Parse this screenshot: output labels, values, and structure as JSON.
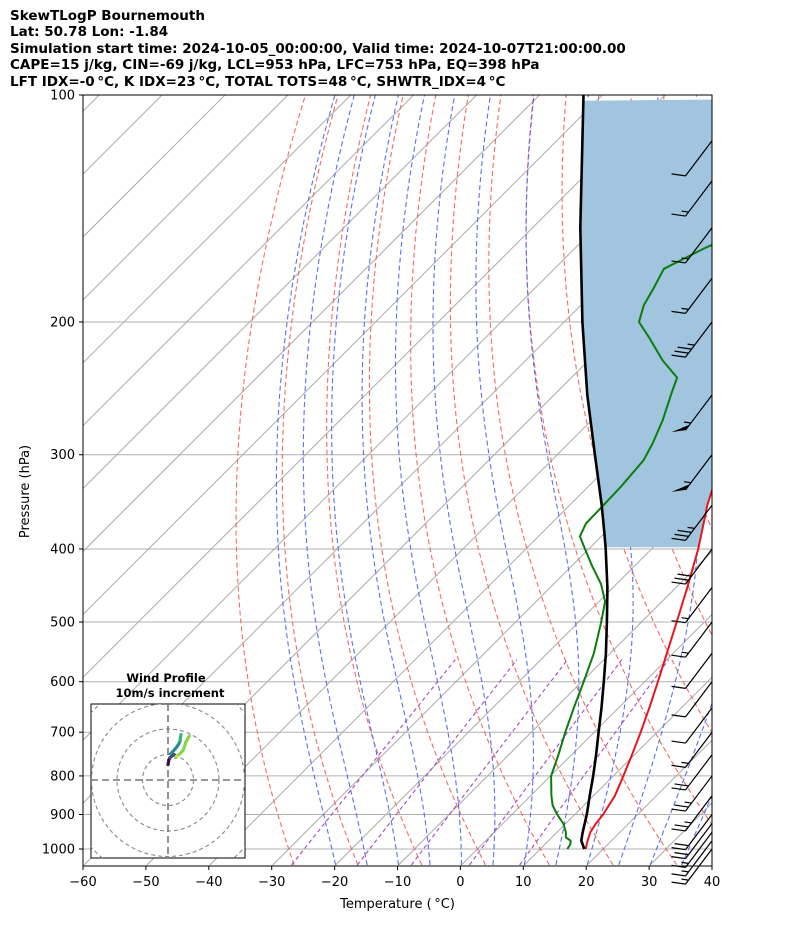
{
  "title_lines": [
    "SkewTLogP Bournemouth",
    "Lat: 50.78   Lon: -1.84",
    "Simulation start time: 2024-10-05_00:00:00, Valid time: 2024-10-07T21:00:00.00",
    "CAPE=15 j/kg, CIN=-69 j/kg, LCL=953 hPa, LFC=753 hPa, EQ=398 hPa",
    "LFT IDX=-0$^\\circ$C, K IDX=23$^\\circ$C, TOTAL TOTS=48$^\\circ$C, SHWTR_IDX=4$^\\circ$C"
  ],
  "title_display": [
    "SkewTLogP Bournemouth",
    "Lat: 50.78   Lon: -1.84",
    "Simulation start time: 2024-10-05_00:00:00, Valid time: 2024-10-07T21:00:00.00",
    "CAPE=15 j/kg, CIN=-69 j/kg, LCL=953 hPa, LFC=753 hPa, EQ=398 hPa",
    "LFT IDX=-0 °C, K IDX=23 °C, TOTAL TOTS=48 °C, SHWTR_IDX=4 °C"
  ],
  "chart_data": {
    "type": "line",
    "skew_t": true,
    "xlabel": "Temperature ( °C)",
    "ylabel": "Pressure (hPa)",
    "xlim": [
      -60,
      40
    ],
    "ylim": [
      1050,
      100
    ],
    "yscale": "log",
    "grid": true,
    "xticks": [
      -60,
      -50,
      -40,
      -30,
      -20,
      -10,
      0,
      10,
      20,
      30,
      40
    ],
    "yticks": [
      1000,
      900,
      800,
      700,
      600,
      500,
      400,
      300,
      200,
      100
    ],
    "series": [
      {
        "name": "Temperature",
        "color": "#e8161b",
        "points": [
          [
            1000,
            17.2
          ],
          [
            975,
            16.2
          ],
          [
            950,
            15.3
          ],
          [
            925,
            14.8
          ],
          [
            900,
            14.5
          ],
          [
            850,
            13.4
          ],
          [
            800,
            11.6
          ],
          [
            750,
            9.6
          ],
          [
            700,
            7.4
          ],
          [
            650,
            4.9
          ],
          [
            600,
            2.1
          ],
          [
            550,
            -1.0
          ],
          [
            500,
            -4.4
          ],
          [
            450,
            -8.2
          ],
          [
            400,
            -12.6
          ],
          [
            370,
            -15.8
          ],
          [
            350,
            -18.1
          ],
          [
            330,
            -20.2
          ],
          [
            300,
            -24.3
          ],
          [
            280,
            -27.6
          ],
          [
            260,
            -30.8
          ],
          [
            245,
            -33.4
          ],
          [
            235,
            -34.9
          ],
          [
            225,
            -31.3
          ],
          [
            210,
            -27.4
          ],
          [
            200,
            -25.5
          ],
          [
            190,
            -24.0
          ],
          [
            180,
            -22.8
          ],
          [
            170,
            -23.6
          ],
          [
            160,
            -24.8
          ],
          [
            150,
            -26.3
          ],
          [
            140,
            -28.9
          ],
          [
            130,
            -31.5
          ],
          [
            120,
            -35.0
          ],
          [
            110,
            -39.2
          ],
          [
            100,
            -43.3
          ]
        ]
      },
      {
        "name": "Dewpoint",
        "color": "#0a7d0a",
        "points": [
          [
            1000,
            14.3
          ],
          [
            985,
            14.0
          ],
          [
            975,
            13.5
          ],
          [
            965,
            12.2
          ],
          [
            950,
            11.4
          ],
          [
            925,
            9.6
          ],
          [
            900,
            7.2
          ],
          [
            875,
            5.0
          ],
          [
            850,
            3.3
          ],
          [
            800,
            0.1
          ],
          [
            750,
            -2.1
          ],
          [
            700,
            -4.6
          ],
          [
            650,
            -7.1
          ],
          [
            600,
            -9.7
          ],
          [
            550,
            -12.6
          ],
          [
            500,
            -16.4
          ],
          [
            470,
            -19.0
          ],
          [
            445,
            -22.5
          ],
          [
            420,
            -27.0
          ],
          [
            400,
            -30.6
          ],
          [
            385,
            -33.4
          ],
          [
            370,
            -34.5
          ],
          [
            350,
            -34.6
          ],
          [
            330,
            -34.8
          ],
          [
            305,
            -35.4
          ],
          [
            290,
            -36.6
          ],
          [
            270,
            -38.7
          ],
          [
            250,
            -41.4
          ],
          [
            237,
            -43.2
          ],
          [
            225,
            -48.2
          ],
          [
            210,
            -53.9
          ],
          [
            200,
            -58.1
          ],
          [
            190,
            -60.0
          ],
          [
            180,
            -61.2
          ],
          [
            170,
            -62.6
          ],
          [
            160,
            -59.5
          ],
          [
            150,
            -55.6
          ],
          [
            140,
            -52.5
          ],
          [
            130,
            -50.0
          ],
          [
            120,
            -47.8
          ],
          [
            110,
            -45.6
          ],
          [
            100,
            -43.6
          ]
        ]
      },
      {
        "name": "Parcel",
        "color": "#000000",
        "points": [
          [
            1000,
            17.0
          ],
          [
            975,
            15.2
          ],
          [
            953,
            14.2
          ],
          [
            925,
            13.0
          ],
          [
            900,
            11.9
          ],
          [
            850,
            9.4
          ],
          [
            800,
            6.8
          ],
          [
            750,
            3.9
          ],
          [
            700,
            0.7
          ],
          [
            650,
            -2.7
          ],
          [
            600,
            -6.5
          ],
          [
            550,
            -10.7
          ],
          [
            500,
            -15.5
          ],
          [
            450,
            -20.9
          ],
          [
            400,
            -27.3
          ],
          [
            380,
            -30.2
          ],
          [
            350,
            -34.9
          ],
          [
            300,
            -44.0
          ],
          [
            250,
            -54.7
          ],
          [
            200,
            -67.1
          ],
          [
            150,
            -82.4
          ],
          [
            100,
            -103.0
          ]
        ]
      }
    ],
    "shaded_region": {
      "label": "CAPE",
      "color": "#a1c5de",
      "between": [
        "Temperature",
        "Parcel"
      ],
      "pressure_range": [
        100,
        398
      ]
    },
    "reference_lines": {
      "dry_adiabats": {
        "color": "#f06b6b",
        "style": "dashed"
      },
      "moist_adiabats": {
        "color": "#5d6ef0",
        "style": "dashed"
      },
      "mixing_ratio": {
        "color": "#a349c7",
        "style": "dashed"
      },
      "isotherms": {
        "color": "#aaaaaa",
        "style": "solid"
      }
    },
    "wind_barbs": [
      {
        "pressure": 1000,
        "speed_kt": 15
      },
      {
        "pressure": 975,
        "speed_kt": 15
      },
      {
        "pressure": 950,
        "speed_kt": 15
      },
      {
        "pressure": 925,
        "speed_kt": 20
      },
      {
        "pressure": 900,
        "speed_kt": 20
      },
      {
        "pressure": 850,
        "speed_kt": 25
      },
      {
        "pressure": 800,
        "speed_kt": 25
      },
      {
        "pressure": 750,
        "speed_kt": 20
      },
      {
        "pressure": 700,
        "speed_kt": 15
      },
      {
        "pressure": 650,
        "speed_kt": 10
      },
      {
        "pressure": 600,
        "speed_kt": 10
      },
      {
        "pressure": 550,
        "speed_kt": 10
      },
      {
        "pressure": 500,
        "speed_kt": 15
      },
      {
        "pressure": 450,
        "speed_kt": 15
      },
      {
        "pressure": 400,
        "speed_kt": 30
      },
      {
        "pressure": 350,
        "speed_kt": 35
      },
      {
        "pressure": 300,
        "speed_kt": 55
      },
      {
        "pressure": 250,
        "speed_kt": 55
      },
      {
        "pressure": 200,
        "speed_kt": 35
      },
      {
        "pressure": 175,
        "speed_kt": 15
      },
      {
        "pressure": 150,
        "speed_kt": 15
      },
      {
        "pressure": 130,
        "speed_kt": 15
      },
      {
        "pressure": 115,
        "speed_kt": 10
      }
    ],
    "hodograph": {
      "title": "Wind Profile",
      "subtitle": "10m/s increment",
      "ring_interval_ms": 10,
      "segments": [
        {
          "color": "#3b0f52",
          "points": [
            [
              0,
              6
            ],
            [
              0.3,
              7.8
            ],
            [
              0.8,
              8.8
            ]
          ]
        },
        {
          "color": "#3e4a89",
          "points": [
            [
              0.8,
              8.8
            ],
            [
              1.6,
              9.4
            ],
            [
              2.3,
              10.0
            ],
            [
              2.8,
              9.7
            ],
            [
              3.0,
              8.9
            ]
          ]
        },
        {
          "color": "#2a8a8c",
          "points": [
            [
              1.0,
              10.3
            ],
            [
              2.2,
              11.5
            ],
            [
              3.5,
              13.0
            ],
            [
              4.3,
              14.3
            ],
            [
              4.8,
              15.4
            ]
          ]
        },
        {
          "color": "#35b779",
          "points": [
            [
              4.7,
              15.6
            ],
            [
              4.9,
              16.8
            ],
            [
              5.1,
              17.8
            ]
          ]
        },
        {
          "color": "#85d54a",
          "points": [
            [
              3.4,
              9.3
            ],
            [
              4.8,
              10.4
            ],
            [
              5.9,
              11.6
            ],
            [
              6.4,
              12.8
            ],
            [
              6.9,
              14.7
            ],
            [
              7.6,
              15.9
            ],
            [
              8.3,
              17.2
            ]
          ]
        },
        {
          "color": "#ccdb31",
          "points": [
            [
              3.1,
              9.0
            ],
            [
              3.6,
              9.4
            ]
          ]
        }
      ]
    }
  }
}
